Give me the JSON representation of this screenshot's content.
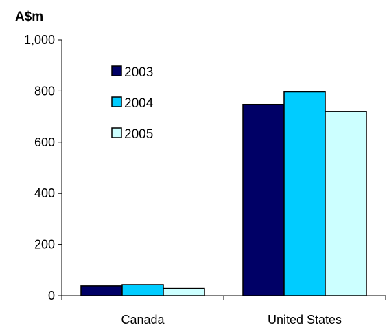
{
  "chart_data": {
    "type": "bar",
    "ylabel": "A$m",
    "categories": [
      "Canada",
      "United States"
    ],
    "series": [
      {
        "name": "2003",
        "color": "#000066",
        "values": [
          38,
          748
        ]
      },
      {
        "name": "2004",
        "color": "#00CCFF",
        "values": [
          43,
          797
        ]
      },
      {
        "name": "2005",
        "color": "#CCFFFF",
        "values": [
          28,
          720
        ]
      }
    ],
    "ylim": [
      0,
      1000
    ],
    "yticks": [
      {
        "value": 0,
        "label": "0"
      },
      {
        "value": 200,
        "label": "200"
      },
      {
        "value": 400,
        "label": "400"
      },
      {
        "value": 600,
        "label": "600"
      },
      {
        "value": 800,
        "label": "800"
      },
      {
        "value": 1000,
        "label": "1,000"
      }
    ],
    "grid": false,
    "legend_position": "top-left inside"
  }
}
